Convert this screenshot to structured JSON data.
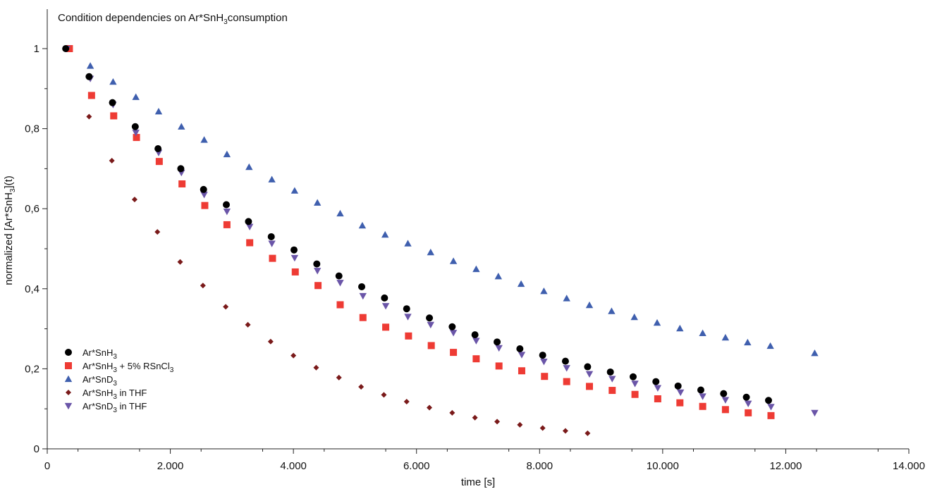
{
  "chart_data": {
    "type": "scatter",
    "title": {
      "pre": "Condition dependencies on Ar*SnH",
      "sub": "3",
      "post": "consumption"
    },
    "xlabel": "time [s]",
    "ylabel": {
      "pre": "normalized [Ar*SnH",
      "sub": "3",
      "post": "](t)"
    },
    "xlim": [
      0,
      14000
    ],
    "ylim": [
      0,
      1.0
    ],
    "x_ticks": [
      {
        "value": 0,
        "label": "0"
      },
      {
        "value": 2000,
        "label": "2.000"
      },
      {
        "value": 4000,
        "label": "4.000"
      },
      {
        "value": 6000,
        "label": "6.000"
      },
      {
        "value": 8000,
        "label": "8.000"
      },
      {
        "value": 10000,
        "label": "10.000"
      },
      {
        "value": 12000,
        "label": "12.000"
      },
      {
        "value": 14000,
        "label": "14.000"
      }
    ],
    "y_ticks": [
      {
        "value": 0,
        "label": "0"
      },
      {
        "value": 0.2,
        "label": "0,2"
      },
      {
        "value": 0.4,
        "label": "0,4"
      },
      {
        "value": 0.6,
        "label": "0,6"
      },
      {
        "value": 0.8,
        "label": "0,8"
      },
      {
        "value": 1.0,
        "label": "1"
      }
    ],
    "grid": false,
    "legend_position": "bottom-left",
    "series": [
      {
        "name": "Ar*SnH3",
        "legend_parts": [
          {
            "t": "Ar*SnH"
          },
          {
            "t": "3",
            "sub": true
          }
        ],
        "marker": "circle",
        "color": "#000000",
        "x": [
          300,
          680,
          1060,
          1430,
          1800,
          2170,
          2540,
          2910,
          3270,
          3640,
          4010,
          4380,
          4740,
          5110,
          5480,
          5840,
          6210,
          6580,
          6950,
          7310,
          7680,
          8050,
          8420,
          8780,
          9150,
          9520,
          9890,
          10250,
          10620,
          10990,
          11360,
          11720
        ],
        "y": [
          1.0,
          0.93,
          0.865,
          0.805,
          0.75,
          0.7,
          0.648,
          0.61,
          0.568,
          0.53,
          0.497,
          0.462,
          0.432,
          0.405,
          0.377,
          0.35,
          0.327,
          0.305,
          0.285,
          0.267,
          0.25,
          0.234,
          0.219,
          0.205,
          0.192,
          0.18,
          0.168,
          0.157,
          0.147,
          0.138,
          0.129,
          0.121
        ]
      },
      {
        "name": "Ar*SnH3 + 5% RSnCl3",
        "legend_parts": [
          {
            "t": "Ar*SnH"
          },
          {
            "t": "3",
            "sub": true
          },
          {
            "t": " + 5% RSnCl"
          },
          {
            "t": "3",
            "sub": true
          }
        ],
        "marker": "square",
        "color": "#ee3b34",
        "x": [
          360,
          720,
          1080,
          1450,
          1820,
          2190,
          2560,
          2920,
          3290,
          3660,
          4030,
          4400,
          4760,
          5130,
          5500,
          5870,
          6240,
          6600,
          6970,
          7340,
          7710,
          8080,
          8440,
          8810,
          9180,
          9550,
          9920,
          10280,
          10650,
          11020,
          11390,
          11760
        ],
        "y": [
          1.0,
          0.883,
          0.832,
          0.778,
          0.718,
          0.662,
          0.608,
          0.56,
          0.515,
          0.476,
          0.442,
          0.408,
          0.36,
          0.328,
          0.304,
          0.282,
          0.258,
          0.241,
          0.225,
          0.207,
          0.195,
          0.181,
          0.168,
          0.156,
          0.146,
          0.136,
          0.125,
          0.115,
          0.106,
          0.098,
          0.09,
          0.083
        ]
      },
      {
        "name": "Ar*SnD3",
        "legend_parts": [
          {
            "t": "Ar*SnD"
          },
          {
            "t": "3",
            "sub": true
          }
        ],
        "marker": "triangle-up",
        "color": "#3f5fae",
        "x": [
          340,
          700,
          1070,
          1440,
          1810,
          2180,
          2550,
          2920,
          3280,
          3650,
          4020,
          4390,
          4760,
          5120,
          5490,
          5860,
          6230,
          6600,
          6970,
          7330,
          7700,
          8070,
          8440,
          8810,
          9170,
          9540,
          9910,
          10280,
          10650,
          11020,
          11380,
          11750,
          12470
        ],
        "y": [
          1.0,
          0.957,
          0.917,
          0.879,
          0.843,
          0.805,
          0.772,
          0.736,
          0.704,
          0.673,
          0.645,
          0.615,
          0.588,
          0.558,
          0.535,
          0.513,
          0.491,
          0.469,
          0.449,
          0.431,
          0.412,
          0.394,
          0.376,
          0.359,
          0.344,
          0.329,
          0.315,
          0.301,
          0.289,
          0.278,
          0.266,
          0.257,
          0.239
        ]
      },
      {
        "name": "Ar*SnH3 in THF",
        "legend_parts": [
          {
            "t": "Ar*SnH"
          },
          {
            "t": "3",
            "sub": true
          },
          {
            "t": " in THF"
          }
        ],
        "marker": "diamond",
        "color": "#7a1a1a",
        "x": [
          300,
          680,
          1050,
          1420,
          1790,
          2160,
          2530,
          2900,
          3260,
          3630,
          4000,
          4370,
          4740,
          5100,
          5470,
          5840,
          6210,
          6580,
          6950,
          7310,
          7680,
          8050,
          8420,
          8780
        ],
        "y": [
          1.0,
          0.83,
          0.72,
          0.623,
          0.542,
          0.467,
          0.408,
          0.355,
          0.31,
          0.268,
          0.233,
          0.203,
          0.178,
          0.155,
          0.135,
          0.118,
          0.103,
          0.09,
          0.078,
          0.068,
          0.06,
          0.052,
          0.045,
          0.039
        ]
      },
      {
        "name": "Ar*SnD3 in THF",
        "legend_parts": [
          {
            "t": "Ar*SnD"
          },
          {
            "t": "3",
            "sub": true
          },
          {
            "t": " in THF"
          }
        ],
        "marker": "triangle-down",
        "color": "#6a55a8",
        "x": [
          320,
          700,
          1070,
          1440,
          1810,
          2180,
          2550,
          2920,
          3290,
          3650,
          4020,
          4390,
          4760,
          5130,
          5500,
          5860,
          6230,
          6600,
          6970,
          7340,
          7710,
          8070,
          8440,
          8810,
          9180,
          9550,
          9920,
          10290,
          10650,
          11020,
          11390,
          11760,
          12470
        ],
        "y": [
          1.0,
          0.925,
          0.86,
          0.79,
          0.74,
          0.69,
          0.635,
          0.593,
          0.555,
          0.513,
          0.477,
          0.445,
          0.415,
          0.382,
          0.357,
          0.33,
          0.31,
          0.29,
          0.27,
          0.252,
          0.235,
          0.218,
          0.202,
          0.187,
          0.175,
          0.163,
          0.152,
          0.141,
          0.131,
          0.122,
          0.113,
          0.105,
          0.09
        ]
      }
    ]
  }
}
